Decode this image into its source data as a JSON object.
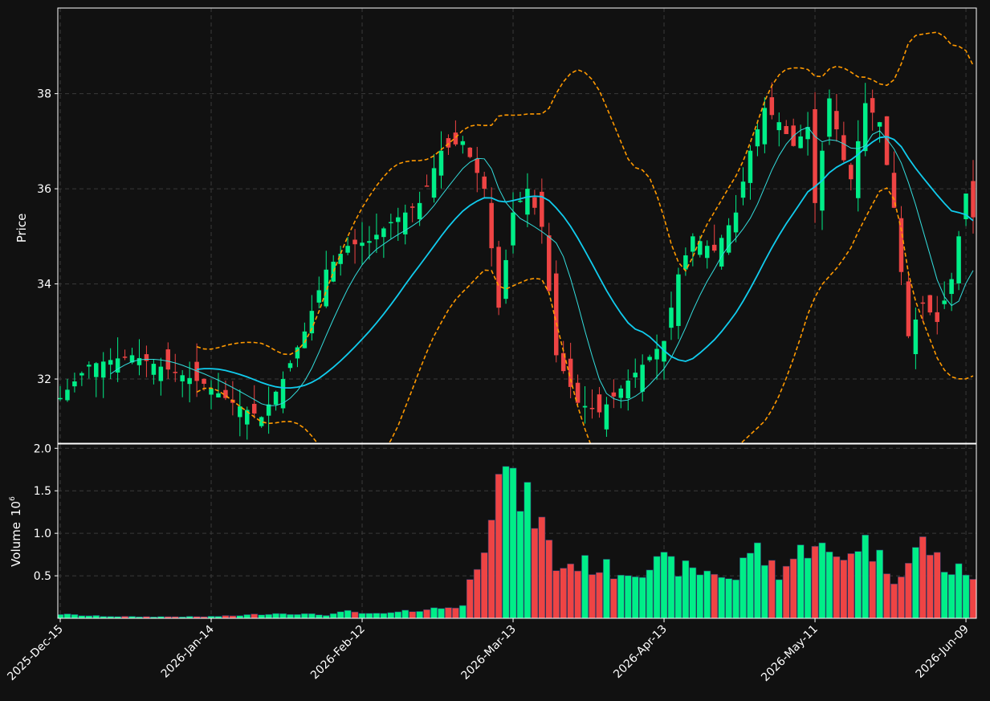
{
  "chart_data": {
    "type": "candlestick",
    "panels": [
      "price",
      "volume"
    ],
    "price_axis": {
      "label": "Price",
      "ticks": [
        32,
        34,
        36,
        38
      ],
      "range": [
        30.65,
        39.8
      ]
    },
    "volume_axis": {
      "label": "Volume",
      "exponent_label": "10",
      "exponent": "6",
      "ticks": [
        0.5,
        1.0,
        1.5,
        2.0
      ],
      "tick_labels": [
        "0.5",
        "1.0",
        "1.5",
        "2.0"
      ],
      "range": [
        0,
        2.05
      ]
    },
    "x_ticks": [
      {
        "index": 0,
        "label": "2025-Dec-15"
      },
      {
        "index": 21,
        "label": "2026-Jan-14"
      },
      {
        "index": 42,
        "label": "2026-Feb-12"
      },
      {
        "index": 63,
        "label": "2026-Mar-13"
      },
      {
        "index": 84,
        "label": "2026-Apr-13"
      },
      {
        "index": 105,
        "label": "2026-May-11"
      },
      {
        "index": 126,
        "label": "2026-Jun-09"
      }
    ],
    "grid": true,
    "colors": {
      "background": "#111111",
      "up": "#00ee88",
      "down": "#ee4444",
      "ma_fast": "#33dddd",
      "ma_slow": "#11ccee",
      "bollinger": "#ff9900",
      "grid": "#3a3a3a",
      "frame": "#ffffff"
    },
    "overlays": [
      "moving average (fast)",
      "moving average (slow)",
      "bollinger upper",
      "bollinger lower"
    ],
    "keypoints": [
      [
        0,
        31.6,
        0.05
      ],
      [
        4,
        32.3,
        0.03
      ],
      [
        10,
        32.5,
        0.02
      ],
      [
        15,
        32.2,
        0.02
      ],
      [
        20,
        31.9,
        0.02
      ],
      [
        24,
        31.5,
        0.03
      ],
      [
        28,
        31.2,
        0.05
      ],
      [
        31,
        32.0,
        0.06
      ],
      [
        34,
        33.0,
        0.05
      ],
      [
        37,
        34.3,
        0.04
      ],
      [
        40,
        34.8,
        0.08
      ],
      [
        43,
        34.9,
        0.05
      ],
      [
        46,
        35.3,
        0.06
      ],
      [
        50,
        35.7,
        0.1
      ],
      [
        53,
        36.8,
        0.12
      ],
      [
        56,
        37.0,
        0.15
      ],
      [
        59,
        36.0,
        0.95
      ],
      [
        61,
        33.5,
        1.9
      ],
      [
        63,
        35.5,
        1.5
      ],
      [
        65,
        36.0,
        1.35
      ],
      [
        67,
        35.2,
        1.1
      ],
      [
        69,
        32.5,
        0.6
      ],
      [
        72,
        31.5,
        0.65
      ],
      [
        75,
        31.3,
        0.6
      ],
      [
        78,
        31.8,
        0.55
      ],
      [
        81,
        32.3,
        0.6
      ],
      [
        84,
        32.8,
        0.65
      ],
      [
        86,
        34.2,
        0.6
      ],
      [
        88,
        35.0,
        0.55
      ],
      [
        91,
        34.7,
        0.55
      ],
      [
        94,
        35.5,
        0.45
      ],
      [
        96,
        36.8,
        0.85
      ],
      [
        98,
        37.7,
        0.7
      ],
      [
        100,
        37.4,
        0.55
      ],
      [
        102,
        36.9,
        0.7
      ],
      [
        104,
        37.3,
        0.85
      ],
      [
        105,
        35.7,
        0.95
      ],
      [
        107,
        37.9,
        0.7
      ],
      [
        109,
        36.6,
        0.7
      ],
      [
        110,
        36.2,
        0.85
      ],
      [
        112,
        37.8,
        0.9
      ],
      [
        114,
        37.4,
        0.7
      ],
      [
        116,
        35.6,
        0.5
      ],
      [
        118,
        32.9,
        0.65
      ],
      [
        120,
        33.6,
        0.9
      ],
      [
        122,
        33.2,
        0.7
      ],
      [
        124,
        34.1,
        0.55
      ],
      [
        126,
        35.9,
        0.55
      ],
      [
        127,
        35.4,
        0.52
      ]
    ]
  }
}
